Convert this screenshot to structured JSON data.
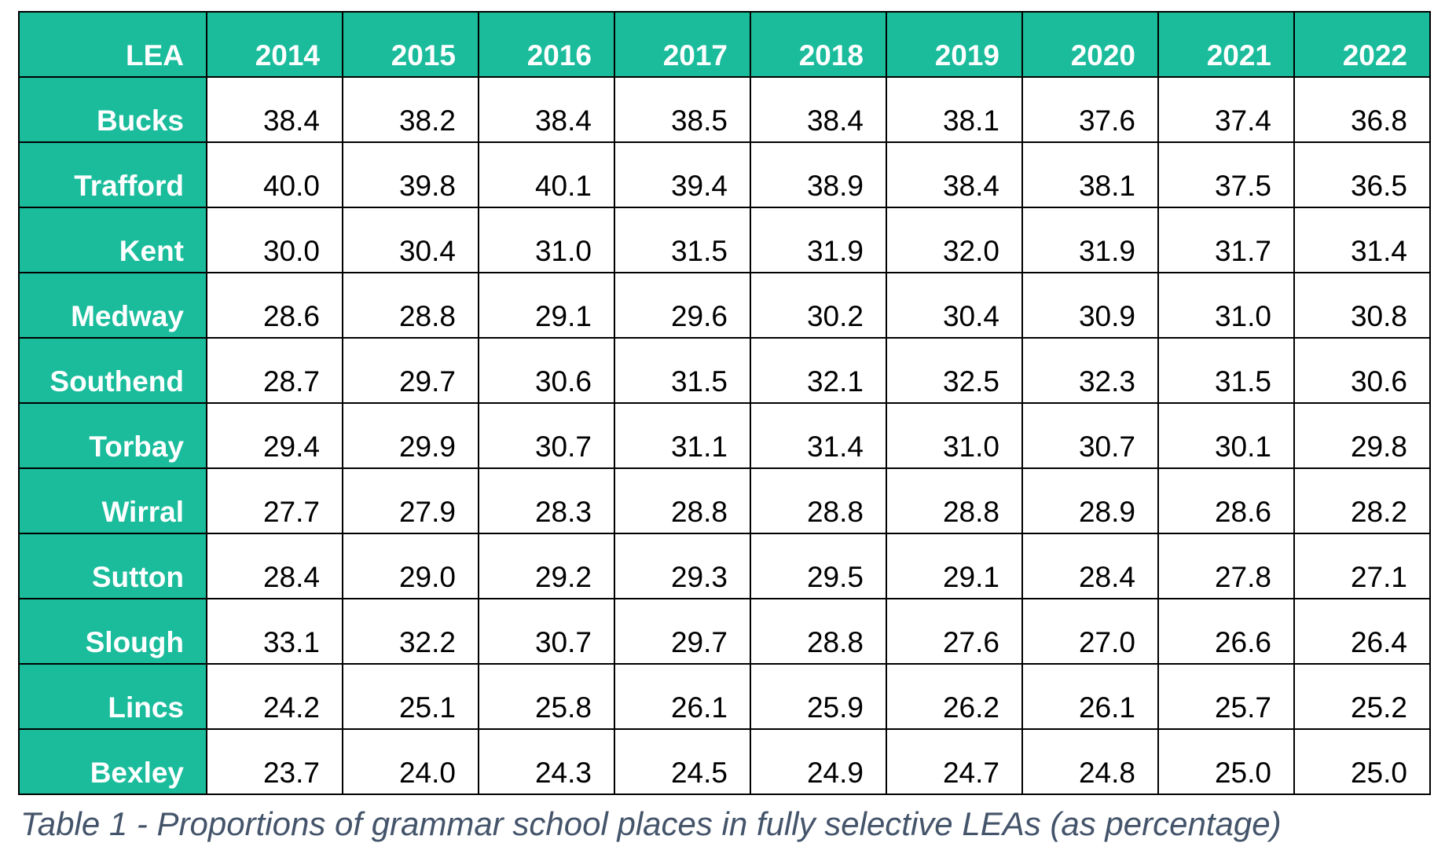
{
  "chart_data": {
    "type": "table",
    "title": "",
    "caption": "Table 1 - Proportions of grammar school places in fully selective LEAs (as percentage)",
    "header_color": "#1ABC9C",
    "caption_color": "#44546A",
    "columns": [
      "LEA",
      "2014",
      "2015",
      "2016",
      "2017",
      "2018",
      "2019",
      "2020",
      "2021",
      "2022"
    ],
    "rows": [
      {
        "label": "Bucks",
        "values": [
          "38.4",
          "38.2",
          "38.4",
          "38.5",
          "38.4",
          "38.1",
          "37.6",
          "37.4",
          "36.8"
        ]
      },
      {
        "label": "Trafford",
        "values": [
          "40.0",
          "39.8",
          "40.1",
          "39.4",
          "38.9",
          "38.4",
          "38.1",
          "37.5",
          "36.5"
        ]
      },
      {
        "label": "Kent",
        "values": [
          "30.0",
          "30.4",
          "31.0",
          "31.5",
          "31.9",
          "32.0",
          "31.9",
          "31.7",
          "31.4"
        ]
      },
      {
        "label": "Medway",
        "values": [
          "28.6",
          "28.8",
          "29.1",
          "29.6",
          "30.2",
          "30.4",
          "30.9",
          "31.0",
          "30.8"
        ]
      },
      {
        "label": "Southend",
        "values": [
          "28.7",
          "29.7",
          "30.6",
          "31.5",
          "32.1",
          "32.5",
          "32.3",
          "31.5",
          "30.6"
        ]
      },
      {
        "label": "Torbay",
        "values": [
          "29.4",
          "29.9",
          "30.7",
          "31.1",
          "31.4",
          "31.0",
          "30.7",
          "30.1",
          "29.8"
        ]
      },
      {
        "label": "Wirral",
        "values": [
          "27.7",
          "27.9",
          "28.3",
          "28.8",
          "28.8",
          "28.8",
          "28.9",
          "28.6",
          "28.2"
        ]
      },
      {
        "label": "Sutton",
        "values": [
          "28.4",
          "29.0",
          "29.2",
          "29.3",
          "29.5",
          "29.1",
          "28.4",
          "27.8",
          "27.1"
        ]
      },
      {
        "label": "Slough",
        "values": [
          "33.1",
          "32.2",
          "30.7",
          "29.7",
          "28.8",
          "27.6",
          "27.0",
          "26.6",
          "26.4"
        ]
      },
      {
        "label": "Lincs",
        "values": [
          "24.2",
          "25.1",
          "25.8",
          "26.1",
          "25.9",
          "26.2",
          "26.1",
          "25.7",
          "25.2"
        ]
      },
      {
        "label": "Bexley",
        "values": [
          "23.7",
          "24.0",
          "24.3",
          "24.5",
          "24.9",
          "24.7",
          "24.8",
          "25.0",
          "25.0"
        ]
      }
    ]
  }
}
